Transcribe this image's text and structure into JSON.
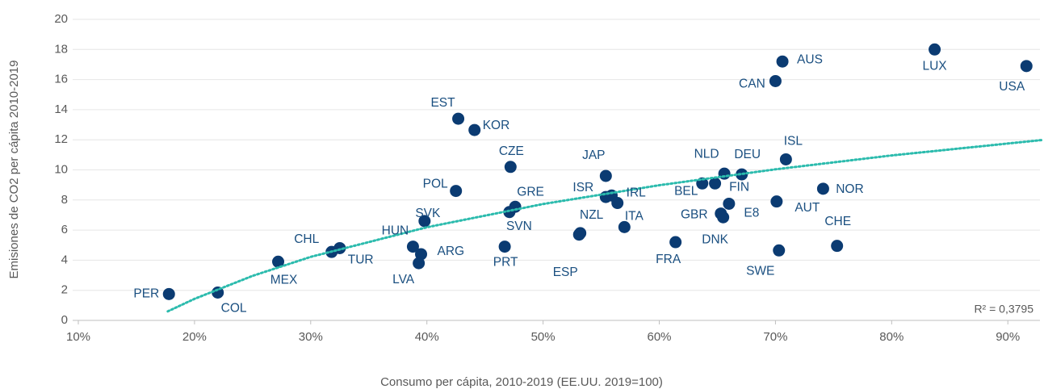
{
  "chart_data": {
    "type": "scatter",
    "xlabel": "Consumo per cápita, 2010-2019 (EE.UU. 2019=100)",
    "ylabel": "Emisiones de CO2 per cápita 2010-2019",
    "labels": [
      "PER",
      "COL",
      "MEX",
      "CHL",
      "TUR",
      "HUN",
      "ARG",
      "LVA",
      "SVK",
      "POL",
      "EST",
      "KOR",
      "CZE",
      "GRE",
      "SVN",
      "PRT",
      "NZL",
      "ESP",
      "JAP",
      "ISR",
      null,
      "IRL",
      "ITA",
      "FRA",
      "BEL",
      "FIN",
      "NLD",
      "DEU",
      "E8",
      "GBR",
      "DNK",
      "AUT",
      "CAN",
      "AUS",
      "ISL",
      "SWE",
      "NOR",
      "CHE",
      "LUX",
      "USA"
    ],
    "x": [
      17.8,
      22.0,
      27.2,
      31.8,
      32.5,
      38.8,
      39.5,
      39.3,
      39.8,
      42.5,
      42.7,
      44.1,
      47.2,
      47.6,
      47.1,
      46.7,
      53.2,
      53.1,
      55.4,
      55.4,
      55.9,
      56.4,
      57.0,
      61.4,
      63.7,
      64.8,
      65.6,
      67.1,
      66.0,
      65.3,
      65.5,
      70.1,
      70.0,
      70.6,
      70.9,
      70.3,
      74.1,
      75.3,
      83.7,
      91.6
    ],
    "values": [
      1.75,
      1.85,
      3.9,
      4.55,
      4.8,
      4.9,
      4.4,
      3.8,
      6.6,
      8.6,
      13.4,
      12.65,
      10.2,
      7.55,
      7.2,
      4.9,
      5.8,
      5.7,
      9.6,
      8.2,
      8.3,
      7.8,
      6.2,
      5.2,
      9.1,
      9.1,
      9.75,
      9.7,
      7.75,
      7.1,
      6.85,
      7.9,
      15.9,
      17.2,
      10.7,
      4.65,
      8.75,
      4.95,
      18.0,
      16.9
    ],
    "color": "#0b3b72",
    "trendline": {
      "label": "R² = 0,3795",
      "color": "#2bbbad",
      "x": [
        17.7,
        20,
        25,
        30,
        40,
        50,
        60,
        70,
        80,
        93
      ],
      "values": [
        0.6,
        1.43,
        2.96,
        4.22,
        6.19,
        7.73,
        8.98,
        10.04,
        10.96,
        11.99
      ]
    },
    "xlim": [
      10,
      92
    ],
    "xticks": [
      {
        "value": 10,
        "label": "10%"
      },
      {
        "value": 20,
        "label": "20%"
      },
      {
        "value": 30,
        "label": "30%"
      },
      {
        "value": 40,
        "label": "40%"
      },
      {
        "value": 50,
        "label": "50%"
      },
      {
        "value": 60,
        "label": "60%"
      },
      {
        "value": 70,
        "label": "70%"
      },
      {
        "value": 80,
        "label": "80%"
      },
      {
        "value": 90,
        "label": "90%"
      }
    ],
    "ylim": [
      0,
      20
    ],
    "yticks": [
      0,
      2,
      4,
      6,
      8,
      10,
      12,
      14,
      16,
      18,
      20
    ],
    "grid": true
  }
}
